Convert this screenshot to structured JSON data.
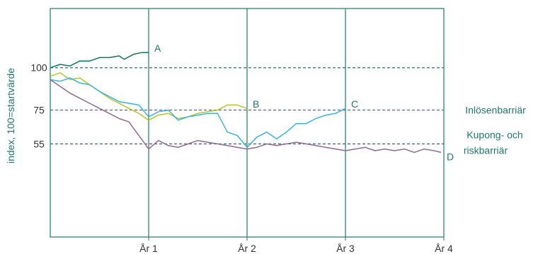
{
  "chart_data": {
    "type": "line",
    "ylabel": "index, 100=startvärde",
    "xlabel": "",
    "x_ticks": [
      {
        "x": 1,
        "label": "År 1"
      },
      {
        "x": 2,
        "label": "År 2"
      },
      {
        "x": 3,
        "label": "År 3"
      },
      {
        "x": 4,
        "label": "År 4"
      }
    ],
    "xlim": [
      0,
      4
    ],
    "ylim": [
      0,
      135
    ],
    "y_ticks": [
      55,
      75,
      100
    ],
    "reference_lines": [
      {
        "y": 100,
        "label": ""
      },
      {
        "y": 75,
        "label": "Inlösenbarriär"
      },
      {
        "y": 55,
        "label_lines": [
          "Kupong- och",
          "riskbarriär"
        ]
      }
    ],
    "grid": false,
    "colors": {
      "axis": "#1d7a6a",
      "ref_line": "#1d7a6a",
      "series_A": "#0d7a5a",
      "series_B": "#b4c42c",
      "series_C": "#3ab3df",
      "series_D": "#8e6b93"
    },
    "series": [
      {
        "name": "A",
        "color_key": "series_A",
        "points": [
          [
            0,
            100
          ],
          [
            0.1,
            102
          ],
          [
            0.2,
            101
          ],
          [
            0.3,
            104
          ],
          [
            0.4,
            104
          ],
          [
            0.5,
            106
          ],
          [
            0.6,
            106
          ],
          [
            0.7,
            107
          ],
          [
            0.75,
            105
          ],
          [
            0.85,
            108
          ],
          [
            0.93,
            109
          ],
          [
            1.0,
            109
          ]
        ]
      },
      {
        "name": "B",
        "color_key": "series_B",
        "points": [
          [
            0,
            95
          ],
          [
            0.1,
            97
          ],
          [
            0.2,
            93
          ],
          [
            0.3,
            94
          ],
          [
            0.4,
            90
          ],
          [
            0.5,
            86
          ],
          [
            0.6,
            82
          ],
          [
            0.7,
            79
          ],
          [
            0.8,
            76
          ],
          [
            0.9,
            73
          ],
          [
            1.0,
            69
          ],
          [
            1.1,
            72
          ],
          [
            1.2,
            73
          ],
          [
            1.3,
            70
          ],
          [
            1.4,
            71
          ],
          [
            1.5,
            73
          ],
          [
            1.6,
            74
          ],
          [
            1.7,
            75
          ],
          [
            1.8,
            78
          ],
          [
            1.9,
            78
          ],
          [
            2.0,
            76
          ]
        ]
      },
      {
        "name": "C",
        "color_key": "series_C",
        "points": [
          [
            0,
            93
          ],
          [
            0.1,
            92
          ],
          [
            0.2,
            94
          ],
          [
            0.3,
            91
          ],
          [
            0.4,
            90
          ],
          [
            0.5,
            86
          ],
          [
            0.6,
            83
          ],
          [
            0.7,
            80
          ],
          [
            0.8,
            79
          ],
          [
            0.9,
            78
          ],
          [
            1.0,
            71
          ],
          [
            1.1,
            74
          ],
          [
            1.2,
            75
          ],
          [
            1.3,
            69
          ],
          [
            1.4,
            71
          ],
          [
            1.5,
            72
          ],
          [
            1.6,
            73
          ],
          [
            1.7,
            73
          ],
          [
            1.8,
            62
          ],
          [
            1.9,
            60
          ],
          [
            2.0,
            53
          ],
          [
            2.1,
            59
          ],
          [
            2.2,
            62
          ],
          [
            2.3,
            58
          ],
          [
            2.4,
            62
          ],
          [
            2.5,
            67
          ],
          [
            2.6,
            67
          ],
          [
            2.7,
            70
          ],
          [
            2.8,
            72
          ],
          [
            2.9,
            73
          ],
          [
            3.0,
            76
          ]
        ]
      },
      {
        "name": "D",
        "color_key": "series_D",
        "points": [
          [
            0,
            93
          ],
          [
            0.1,
            89
          ],
          [
            0.2,
            85
          ],
          [
            0.3,
            82
          ],
          [
            0.4,
            79
          ],
          [
            0.5,
            76
          ],
          [
            0.6,
            73
          ],
          [
            0.7,
            70
          ],
          [
            0.8,
            68
          ],
          [
            0.85,
            64
          ],
          [
            0.9,
            60
          ],
          [
            1.0,
            52
          ],
          [
            1.1,
            57
          ],
          [
            1.2,
            54
          ],
          [
            1.3,
            53
          ],
          [
            1.4,
            55
          ],
          [
            1.5,
            57
          ],
          [
            1.6,
            56
          ],
          [
            1.7,
            55
          ],
          [
            1.8,
            54
          ],
          [
            1.9,
            53
          ],
          [
            2.0,
            52
          ],
          [
            2.1,
            53
          ],
          [
            2.2,
            55
          ],
          [
            2.3,
            54
          ],
          [
            2.4,
            55
          ],
          [
            2.5,
            56
          ],
          [
            2.6,
            55
          ],
          [
            2.7,
            54
          ],
          [
            2.8,
            53
          ],
          [
            2.9,
            52
          ],
          [
            3.0,
            51
          ],
          [
            3.1,
            52
          ],
          [
            3.2,
            53
          ],
          [
            3.3,
            51
          ],
          [
            3.4,
            52
          ],
          [
            3.5,
            51
          ],
          [
            3.6,
            52
          ],
          [
            3.7,
            50
          ],
          [
            3.8,
            52
          ],
          [
            3.9,
            51
          ],
          [
            4.0,
            50
          ]
        ]
      }
    ]
  }
}
